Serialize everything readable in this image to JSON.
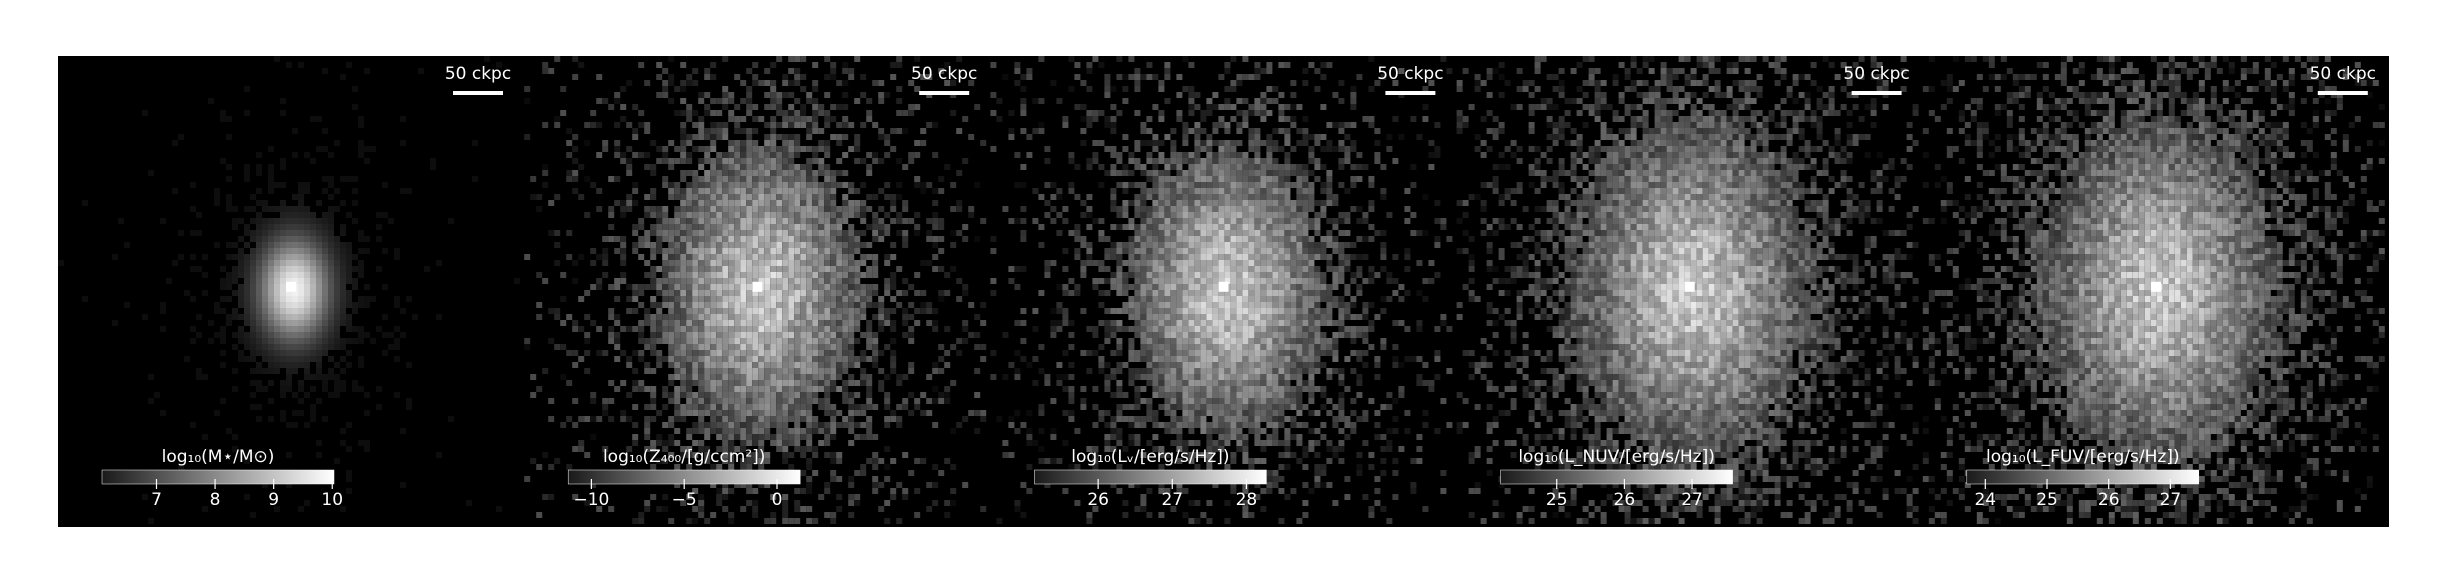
{
  "chart_data": [
    {
      "type": "image",
      "cmap": "gray",
      "scale_bar_label": "50 ckpc",
      "colorbar_label": "log₁₀(M⋆/M⊙)",
      "xlim": [
        6.07,
        10.03
      ],
      "xticks": [
        7,
        8,
        9,
        10
      ]
    },
    {
      "type": "image",
      "cmap": "gray",
      "scale_bar_label": "50 ckpc",
      "colorbar_label": "log₁₀(Z₄₀₀/[g/ccm²])",
      "xlim": [
        -11.25,
        1.25
      ],
      "xticks": [
        {
          "value": -10,
          "label": "−10"
        },
        {
          "value": -5,
          "label": "−5"
        },
        0
      ]
    },
    {
      "type": "image",
      "cmap": "gray",
      "scale_bar_label": "50 ckpc",
      "colorbar_label": "log₁₀(Lᵥ/[erg/s/Hz])",
      "xlim": [
        25.14,
        28.27
      ],
      "xticks": [
        26,
        27,
        28
      ]
    },
    {
      "type": "image",
      "cmap": "gray",
      "scale_bar_label": "50 ckpc",
      "colorbar_label": "log₁₀(L_NUV/[erg/s/Hz])",
      "xlim": [
        24.17,
        27.6
      ],
      "xticks": [
        25,
        26,
        27
      ]
    },
    {
      "type": "image",
      "cmap": "gray",
      "scale_bar_label": "50 ckpc",
      "colorbar_label": "log₁₀(L_FUV/[erg/s/Hz])",
      "xlim": [
        23.7,
        27.46
      ],
      "xticks": [
        24,
        25,
        26,
        27
      ]
    }
  ]
}
